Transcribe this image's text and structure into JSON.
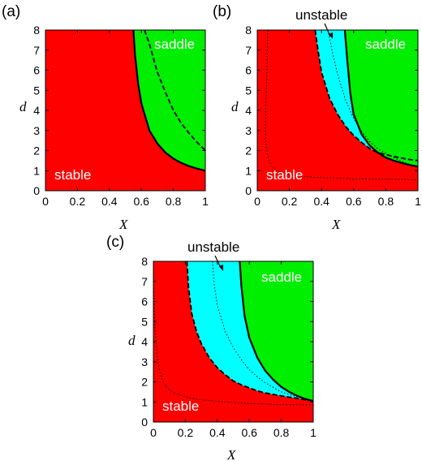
{
  "colors": {
    "stable": "#ff0000",
    "unstable": "#00ffff",
    "saddle": "#00ee00",
    "boundary": "#000000",
    "region_text": "#ffffff"
  },
  "chart_data": [
    {
      "type": "area",
      "panel_label": "(a)",
      "xlabel": "X",
      "ylabel": "d",
      "xlim": [
        0,
        1
      ],
      "ylim": [
        0,
        8
      ],
      "xticks": [
        "0",
        "0.2",
        "0.4",
        "0.6",
        "0.8",
        "1"
      ],
      "yticks": [
        "0",
        "1",
        "2",
        "3",
        "4",
        "5",
        "6",
        "7",
        "8"
      ],
      "regions": [
        {
          "name": "stable",
          "label": "stable",
          "color": "#ff0000"
        },
        {
          "name": "saddle",
          "label": "saddle",
          "color": "#00ee00"
        }
      ],
      "curves": [
        {
          "style": "solid",
          "x": [
            0.55,
            0.56,
            0.58,
            0.6,
            0.65,
            0.7,
            0.75,
            0.8,
            0.85,
            0.9,
            0.95,
            1.0
          ],
          "y": [
            8.0,
            6.8,
            5.3,
            4.35,
            3.0,
            2.35,
            1.9,
            1.6,
            1.38,
            1.22,
            1.1,
            1.0
          ]
        },
        {
          "style": "dashed",
          "x": [
            0.62,
            0.65,
            0.7,
            0.75,
            0.8,
            0.85,
            0.9,
            0.95,
            1.0
          ],
          "y": [
            8.0,
            7.3,
            5.9,
            4.9,
            4.0,
            3.35,
            2.85,
            2.4,
            2.0
          ]
        }
      ],
      "annotations": [
        {
          "text": "stable",
          "x": 0.13,
          "y": 1.0
        },
        {
          "text": "saddle",
          "x": 0.82,
          "y": 7.1
        }
      ]
    },
    {
      "type": "area",
      "panel_label": "(b)",
      "xlabel": "X",
      "ylabel": "d",
      "xlim": [
        0,
        1
      ],
      "ylim": [
        0,
        8
      ],
      "xticks": [
        "0",
        "0.2",
        "0.4",
        "0.6",
        "0.8",
        "1"
      ],
      "yticks": [
        "0",
        "1",
        "2",
        "3",
        "4",
        "5",
        "6",
        "7",
        "8"
      ],
      "regions": [
        {
          "name": "stable",
          "label": "stable",
          "color": "#ff0000"
        },
        {
          "name": "unstable",
          "label": "unstable",
          "color": "#00ffff"
        },
        {
          "name": "saddle",
          "label": "saddle",
          "color": "#00ee00"
        }
      ],
      "curves": [
        {
          "style": "solid",
          "x": [
            0.545,
            0.56,
            0.58,
            0.6,
            0.65,
            0.7,
            0.75,
            0.8,
            0.85,
            0.9,
            0.95,
            1.0
          ],
          "y": [
            8.0,
            6.5,
            4.8,
            3.8,
            2.8,
            2.25,
            1.9,
            1.65,
            1.5,
            1.38,
            1.28,
            1.2
          ]
        },
        {
          "style": "dashed",
          "x": [
            0.36,
            0.38,
            0.4,
            0.45,
            0.5,
            0.55,
            0.6,
            0.65,
            0.7,
            0.75,
            0.8,
            0.85,
            0.9,
            0.95,
            1.0
          ],
          "y": [
            8.0,
            6.9,
            5.9,
            4.6,
            3.8,
            3.2,
            2.75,
            2.4,
            2.1,
            1.9,
            1.8,
            1.7,
            1.62,
            1.55,
            1.5
          ]
        },
        {
          "style": "dotted",
          "x": [
            0.44,
            0.47,
            0.5,
            0.55,
            0.6,
            0.65,
            0.7,
            0.75,
            0.8,
            0.9,
            1.0
          ],
          "y": [
            8.0,
            6.8,
            5.8,
            4.5,
            3.6,
            2.95,
            2.45,
            2.1,
            1.85,
            1.45,
            1.15
          ]
        },
        {
          "style": "dotted",
          "x": [
            0.065,
            0.063,
            0.06,
            0.055,
            0.05,
            0.06,
            0.08,
            0.12,
            0.2,
            0.3,
            0.45,
            0.6,
            0.8,
            1.0
          ],
          "y": [
            8.0,
            7.0,
            6.0,
            4.5,
            3.0,
            1.9,
            1.3,
            1.0,
            0.8,
            0.7,
            0.64,
            0.6,
            0.57,
            0.55
          ]
        }
      ],
      "annotations": [
        {
          "text": "stable",
          "x": 0.13,
          "y": 1.0
        },
        {
          "text": "saddle",
          "x": 0.82,
          "y": 7.1
        },
        {
          "text": "unstable",
          "callout_to": [
            0.46,
            7.5
          ]
        }
      ]
    },
    {
      "type": "area",
      "panel_label": "(c)",
      "xlabel": "X",
      "ylabel": "d",
      "xlim": [
        0,
        1
      ],
      "ylim": [
        0,
        8
      ],
      "xticks": [
        "0",
        "0.2",
        "0.4",
        "0.6",
        "0.8",
        "1"
      ],
      "yticks": [
        "0",
        "1",
        "2",
        "3",
        "4",
        "5",
        "6",
        "7",
        "8"
      ],
      "regions": [
        {
          "name": "stable",
          "label": "stable",
          "color": "#ff0000"
        },
        {
          "name": "unstable",
          "label": "unstable",
          "color": "#00ffff"
        },
        {
          "name": "saddle",
          "label": "saddle",
          "color": "#00ee00"
        }
      ],
      "curves": [
        {
          "style": "solid",
          "x": [
            0.54,
            0.55,
            0.57,
            0.6,
            0.65,
            0.7,
            0.75,
            0.8,
            0.85,
            0.9,
            0.95,
            1.0
          ],
          "y": [
            8.0,
            6.8,
            5.3,
            4.2,
            3.2,
            2.55,
            2.1,
            1.75,
            1.5,
            1.3,
            1.15,
            1.05
          ]
        },
        {
          "style": "dashed",
          "x": [
            0.21,
            0.22,
            0.24,
            0.27,
            0.3,
            0.35,
            0.4,
            0.45,
            0.5,
            0.55,
            0.6,
            0.65,
            0.7,
            0.8,
            0.9,
            1.0
          ],
          "y": [
            8.0,
            6.7,
            5.4,
            4.5,
            3.9,
            3.2,
            2.7,
            2.35,
            2.05,
            1.85,
            1.7,
            1.55,
            1.45,
            1.3,
            1.18,
            1.05
          ]
        },
        {
          "style": "dotted",
          "x": [
            0.37,
            0.38,
            0.4,
            0.45,
            0.5,
            0.55,
            0.6,
            0.65,
            0.7,
            0.8,
            0.9,
            1.0
          ],
          "y": [
            8.0,
            6.9,
            5.8,
            4.5,
            3.7,
            3.1,
            2.6,
            2.25,
            1.95,
            1.5,
            1.25,
            1.05
          ]
        },
        {
          "style": "dotted",
          "x": [
            0.0,
            0.005,
            0.015,
            0.03,
            0.05,
            0.08,
            0.12,
            0.2,
            0.3,
            0.45,
            0.6,
            0.8,
            1.0
          ],
          "y": [
            7.0,
            5.5,
            4.0,
            2.9,
            2.2,
            1.75,
            1.5,
            1.25,
            1.1,
            1.0,
            0.92,
            0.87,
            0.85
          ]
        }
      ],
      "annotations": [
        {
          "text": "stable",
          "x": 0.13,
          "y": 1.0
        },
        {
          "text": "saddle",
          "x": 0.82,
          "y": 7.1
        },
        {
          "text": "unstable",
          "callout_to": [
            0.44,
            7.5
          ]
        }
      ]
    }
  ]
}
